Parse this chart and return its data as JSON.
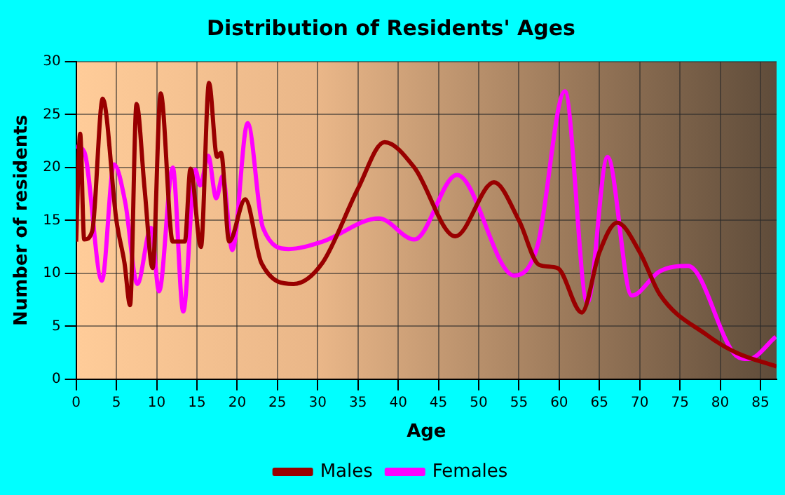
{
  "chart_data": {
    "type": "line",
    "title": "Distribution of Residents' Ages",
    "xlabel": "Age",
    "ylabel": "Number of residents",
    "xlim": [
      0,
      87
    ],
    "xticks": [
      0,
      5,
      10,
      15,
      20,
      25,
      30,
      35,
      40,
      45,
      50,
      55,
      60,
      65,
      70,
      75,
      80,
      85
    ],
    "ylim": [
      0,
      30
    ],
    "yticks": [
      0,
      5,
      10,
      15,
      20,
      25,
      30
    ],
    "grid": true,
    "legend": "bottom",
    "series": [
      {
        "name": "Males",
        "color": "#990000",
        "x": [
          0,
          0.5,
          1,
          2,
          3.3,
          5,
          6,
          6.7,
          7.5,
          8.5,
          9.5,
          10.5,
          12,
          13.5,
          14.2,
          15.5,
          16.5,
          17.5,
          18,
          19,
          21,
          23,
          27,
          30.6,
          35,
          38.3,
          42,
          47.1,
          51.9,
          55,
          57.5,
          59.8,
          62.8,
          65,
          67.2,
          70,
          72.5,
          78.3,
          82,
          87
        ],
        "values": [
          13,
          23.2,
          13.2,
          14,
          26.5,
          15,
          11,
          7,
          26,
          18,
          10.5,
          27,
          13,
          13,
          19.9,
          12.5,
          28,
          21,
          21.4,
          13,
          17,
          11,
          9,
          11,
          18,
          22.4,
          20,
          13.5,
          18.6,
          15,
          10.8,
          10.5,
          6.3,
          12,
          14.8,
          12,
          8,
          4.2,
          2.5,
          1.2
        ]
      },
      {
        "name": "Females",
        "color": "#ff00ff",
        "x": [
          0,
          1,
          3.2,
          4.7,
          6.1,
          7.6,
          9.3,
          10.3,
          12,
          13.3,
          14.8,
          15.4,
          16.4,
          17.4,
          18.2,
          19.4,
          21.3,
          23.2,
          26.4,
          30.6,
          37.6,
          42,
          47.3,
          54.4,
          57.3,
          60.7,
          63.5,
          66,
          69,
          72.5,
          76,
          82,
          83.5,
          86.9
        ],
        "values": [
          22,
          21.5,
          9.3,
          20.3,
          16.7,
          9,
          14.3,
          8.3,
          20,
          6.4,
          19.8,
          18.3,
          21.1,
          17.1,
          19.2,
          12.2,
          24.2,
          14.3,
          12.3,
          13,
          15.2,
          13.2,
          19.3,
          9.8,
          12.6,
          27.2,
          7.2,
          21,
          7.9,
          10.2,
          10.7,
          2.2,
          1.9,
          4
        ]
      }
    ]
  }
}
